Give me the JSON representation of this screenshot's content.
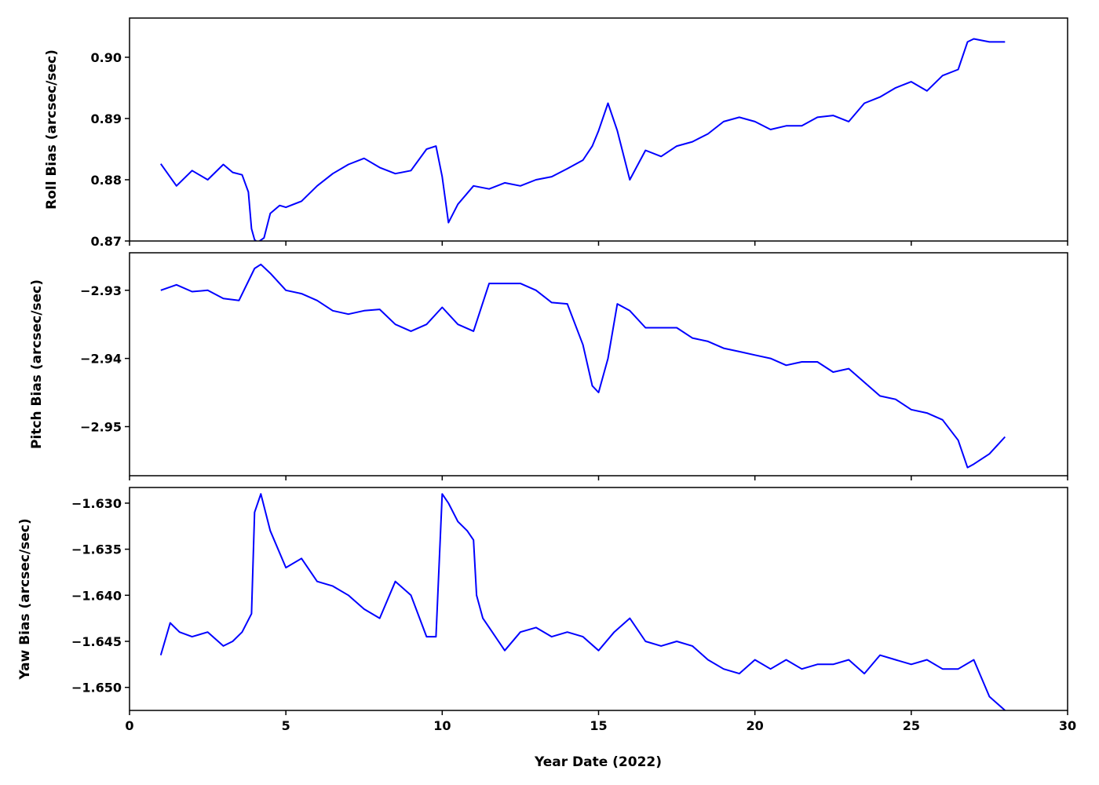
{
  "chart_data": [
    {
      "type": "line",
      "ylabel": "Roll Bias (arcsec/sec)",
      "xlim": [
        0,
        30
      ],
      "ylim": [
        0.87,
        0.9064
      ],
      "yticks": [
        0.87,
        0.88,
        0.89,
        0.9
      ],
      "ytick_labels": [
        "0.87",
        "0.88",
        "0.89",
        "0.90"
      ],
      "line_color": "#0000ff",
      "series": [
        {
          "x": [
            1.0,
            1.5,
            2.0,
            2.5,
            3.0,
            3.3,
            3.6,
            3.8,
            3.9,
            4.0,
            4.1,
            4.3,
            4.5,
            4.8,
            5.0,
            5.5,
            6.0,
            6.5,
            7.0,
            7.5,
            8.0,
            8.5,
            9.0,
            9.5,
            9.8,
            10.0,
            10.2,
            10.5,
            11.0,
            11.5,
            12.0,
            12.5,
            13.0,
            13.5,
            14.0,
            14.5,
            14.8,
            15.0,
            15.3,
            15.6,
            16.0,
            16.5,
            17.0,
            17.5,
            18.0,
            18.5,
            19.0,
            19.5,
            20.0,
            20.5,
            21.0,
            21.5,
            22.0,
            22.5,
            23.0,
            23.5,
            24.0,
            24.5,
            25.0,
            25.5,
            26.0,
            26.5,
            26.8,
            27.0,
            27.5,
            28.0
          ],
          "y": [
            0.8826,
            0.879,
            0.8815,
            0.88,
            0.8825,
            0.8812,
            0.8808,
            0.878,
            0.872,
            0.8702,
            0.8698,
            0.8705,
            0.8745,
            0.8758,
            0.8755,
            0.8765,
            0.879,
            0.881,
            0.8825,
            0.8835,
            0.882,
            0.881,
            0.8815,
            0.885,
            0.8855,
            0.8805,
            0.873,
            0.876,
            0.879,
            0.8785,
            0.8795,
            0.879,
            0.88,
            0.8805,
            0.8818,
            0.8832,
            0.8855,
            0.888,
            0.8925,
            0.888,
            0.88,
            0.8848,
            0.8838,
            0.8855,
            0.8862,
            0.8875,
            0.8895,
            0.8902,
            0.8895,
            0.8882,
            0.8888,
            0.8888,
            0.8902,
            0.8905,
            0.8895,
            0.8925,
            0.8935,
            0.895,
            0.896,
            0.8945,
            0.897,
            0.898,
            0.9025,
            0.903,
            0.9025,
            0.9025
          ]
        }
      ]
    },
    {
      "type": "line",
      "ylabel": "Pitch Bias (arcsec/sec)",
      "xlim": [
        0,
        30
      ],
      "ylim": [
        -2.9572,
        -2.9245
      ],
      "yticks": [
        -2.93,
        -2.94,
        -2.95
      ],
      "ytick_labels": [
        "−2.93",
        "−2.94",
        "−2.95"
      ],
      "line_color": "#0000ff",
      "series": [
        {
          "x": [
            1.0,
            1.5,
            2.0,
            2.5,
            3.0,
            3.5,
            4.0,
            4.2,
            4.5,
            5.0,
            5.5,
            6.0,
            6.5,
            7.0,
            7.5,
            8.0,
            8.5,
            9.0,
            9.5,
            10.0,
            10.5,
            11.0,
            11.5,
            12.0,
            12.5,
            13.0,
            13.5,
            14.0,
            14.5,
            14.8,
            15.0,
            15.3,
            15.6,
            16.0,
            16.5,
            17.0,
            17.5,
            18.0,
            18.5,
            19.0,
            19.5,
            20.0,
            20.5,
            21.0,
            21.5,
            22.0,
            22.5,
            23.0,
            23.5,
            24.0,
            24.5,
            25.0,
            25.5,
            26.0,
            26.5,
            26.8,
            27.0,
            27.5,
            28.0
          ],
          "y": [
            -2.93,
            -2.9292,
            -2.9302,
            -2.93,
            -2.9312,
            -2.9315,
            -2.9268,
            -2.9262,
            -2.9275,
            -2.93,
            -2.9305,
            -2.9315,
            -2.933,
            -2.9335,
            -2.933,
            -2.9328,
            -2.935,
            -2.936,
            -2.935,
            -2.9325,
            -2.935,
            -2.936,
            -2.929,
            -2.929,
            -2.929,
            -2.93,
            -2.9318,
            -2.932,
            -2.938,
            -2.944,
            -2.945,
            -2.94,
            -2.932,
            -2.933,
            -2.9355,
            -2.9355,
            -2.9355,
            -2.937,
            -2.9375,
            -2.9385,
            -2.939,
            -2.9395,
            -2.94,
            -2.941,
            -2.9405,
            -2.9405,
            -2.942,
            -2.9415,
            -2.9435,
            -2.9455,
            -2.946,
            -2.9475,
            -2.948,
            -2.949,
            -2.952,
            -2.956,
            -2.9555,
            -2.954,
            -2.9515
          ]
        }
      ]
    },
    {
      "type": "line",
      "ylabel": "Yaw Bias (arcsec/sec)",
      "xlabel": "Year Date (2022)",
      "xlim": [
        0,
        30
      ],
      "ylim": [
        -1.6525,
        -1.6283
      ],
      "yticks": [
        -1.63,
        -1.635,
        -1.64,
        -1.645,
        -1.65
      ],
      "ytick_labels": [
        "−1.630",
        "−1.635",
        "−1.640",
        "−1.645",
        "−1.650"
      ],
      "xticks": [
        0,
        5,
        10,
        15,
        20,
        25,
        30
      ],
      "xtick_labels": [
        "0",
        "5",
        "10",
        "15",
        "20",
        "25",
        "30"
      ],
      "line_color": "#0000ff",
      "series": [
        {
          "x": [
            1.0,
            1.3,
            1.6,
            2.0,
            2.5,
            3.0,
            3.3,
            3.6,
            3.9,
            4.0,
            4.2,
            4.5,
            5.0,
            5.5,
            6.0,
            6.5,
            7.0,
            7.5,
            8.0,
            8.5,
            9.0,
            9.5,
            9.8,
            10.0,
            10.2,
            10.5,
            10.8,
            11.0,
            11.1,
            11.3,
            11.6,
            12.0,
            12.5,
            13.0,
            13.5,
            14.0,
            14.5,
            15.0,
            15.5,
            16.0,
            16.5,
            17.0,
            17.5,
            18.0,
            18.5,
            19.0,
            19.5,
            20.0,
            20.5,
            21.0,
            21.5,
            22.0,
            22.5,
            23.0,
            23.5,
            24.0,
            24.5,
            25.0,
            25.5,
            26.0,
            26.5,
            27.0,
            27.5,
            28.0
          ],
          "y": [
            -1.6465,
            -1.643,
            -1.644,
            -1.6445,
            -1.644,
            -1.6455,
            -1.645,
            -1.644,
            -1.642,
            -1.631,
            -1.629,
            -1.633,
            -1.637,
            -1.636,
            -1.6385,
            -1.639,
            -1.64,
            -1.6415,
            -1.6425,
            -1.6385,
            -1.64,
            -1.6445,
            -1.6445,
            -1.629,
            -1.63,
            -1.632,
            -1.633,
            -1.634,
            -1.64,
            -1.6425,
            -1.644,
            -1.646,
            -1.644,
            -1.6435,
            -1.6445,
            -1.644,
            -1.6445,
            -1.646,
            -1.644,
            -1.6425,
            -1.645,
            -1.6455,
            -1.645,
            -1.6455,
            -1.647,
            -1.648,
            -1.6485,
            -1.647,
            -1.648,
            -1.647,
            -1.648,
            -1.6475,
            -1.6475,
            -1.647,
            -1.6485,
            -1.6465,
            -1.647,
            -1.6475,
            -1.647,
            -1.648,
            -1.648,
            -1.647,
            -1.651,
            -1.6525
          ]
        }
      ]
    }
  ]
}
